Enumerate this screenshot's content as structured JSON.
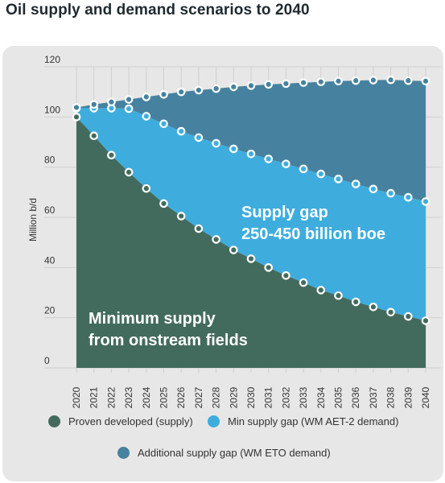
{
  "title": "Oil supply and demand scenarios to 2040",
  "chart_data": {
    "type": "area",
    "ylabel": "Million b/d",
    "ylim": [
      0,
      120
    ],
    "yticks": [
      0,
      20,
      40,
      60,
      80,
      100,
      120
    ],
    "grid": true,
    "x": [
      "2020",
      "2021",
      "2022",
      "2023",
      "2024",
      "2025",
      "2026",
      "2027",
      "2028",
      "2029",
      "2030",
      "2031",
      "2032",
      "2033",
      "2034",
      "2035",
      "2036",
      "2037",
      "2038",
      "2039",
      "2040"
    ],
    "series": [
      {
        "name": "Proven developed (supply)",
        "color": "#436b5d",
        "values": [
          100,
          92.5,
          84.8,
          78,
          71.5,
          65.5,
          60.5,
          55.5,
          51.2,
          47,
          43.5,
          40,
          36.8,
          34,
          31,
          28.8,
          26.3,
          24.3,
          22.2,
          20.5,
          18.8
        ]
      },
      {
        "name": "Min supply gap (WM AET-2 demand)",
        "color": "#3eadde",
        "values": [
          103.5,
          103.5,
          103.5,
          103.3,
          100.3,
          97.3,
          94.3,
          91.8,
          89.5,
          87.3,
          85.3,
          83.3,
          81.3,
          79.3,
          77.3,
          75.3,
          73.3,
          71.3,
          69.6,
          68,
          66.3
        ]
      },
      {
        "name": "Additional supply gap (WM ETO demand)",
        "color": "#46829f",
        "values": [
          103.8,
          105,
          106,
          107,
          108,
          109,
          110,
          110.7,
          111.3,
          112,
          112.5,
          113,
          113.3,
          113.7,
          114,
          114.3,
          114.5,
          114.7,
          114.8,
          114.5,
          114.3
        ]
      }
    ],
    "annotations": [
      {
        "lines": [
          "Supply gap",
          "250-450 billion boe"
        ]
      },
      {
        "lines": [
          "Minimum supply",
          "from onstream fields"
        ]
      }
    ],
    "legend_position": "bottom"
  }
}
